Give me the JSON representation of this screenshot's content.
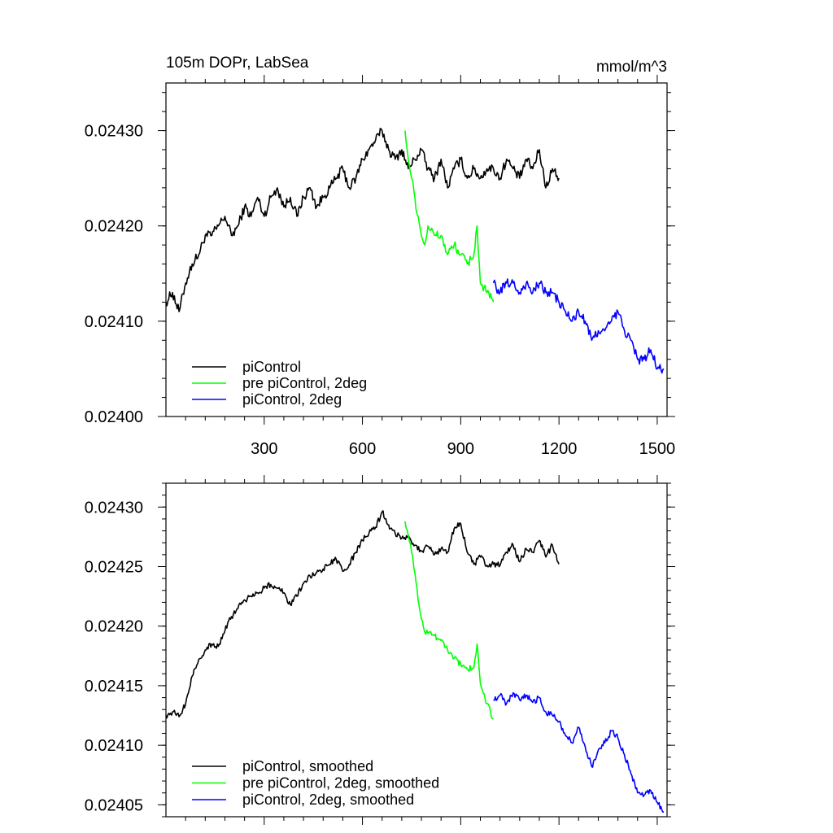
{
  "chart_data": [
    {
      "type": "line",
      "title": "105m DOPr, LabSea",
      "units": "mmol/m^3",
      "xlabel": "",
      "ylabel": "",
      "xlim": [
        0,
        1530
      ],
      "ylim": [
        0.024,
        0.02435
      ],
      "xticks": [
        300,
        600,
        900,
        1200,
        1500
      ],
      "xtick_labels": [
        "300",
        "600",
        "900",
        "1200",
        "1500"
      ],
      "yticks": [
        0.024,
        0.0241,
        0.0242,
        0.0243
      ],
      "ytick_labels": [
        "0.02400",
        "0.02410",
        "0.02420",
        "0.02430"
      ],
      "legend_position": "bottom-left",
      "series": [
        {
          "name": "piControl",
          "color": "#000000",
          "x": [
            0,
            20,
            40,
            60,
            80,
            100,
            120,
            140,
            160,
            180,
            200,
            220,
            240,
            260,
            280,
            300,
            320,
            340,
            360,
            380,
            400,
            420,
            440,
            460,
            480,
            500,
            520,
            540,
            560,
            580,
            600,
            620,
            640,
            660,
            680,
            700,
            720,
            740,
            760,
            780,
            800,
            820,
            840,
            860,
            880,
            900,
            920,
            940,
            960,
            980,
            1000,
            1020,
            1040,
            1060,
            1080,
            1100,
            1120,
            1140,
            1160,
            1180,
            1200
          ],
          "y": [
            0.02412,
            0.02413,
            0.02411,
            0.02414,
            0.02416,
            0.02417,
            0.02419,
            0.02419,
            0.0242,
            0.02421,
            0.02419,
            0.0242,
            0.02422,
            0.02421,
            0.02423,
            0.02421,
            0.02423,
            0.02424,
            0.02422,
            0.02423,
            0.02421,
            0.02423,
            0.02424,
            0.02422,
            0.02423,
            0.02424,
            0.02425,
            0.02426,
            0.02424,
            0.02425,
            0.02427,
            0.02428,
            0.02429,
            0.0243,
            0.02428,
            0.02427,
            0.02428,
            0.02426,
            0.02427,
            0.02428,
            0.02426,
            0.02425,
            0.02427,
            0.02424,
            0.02426,
            0.02427,
            0.02425,
            0.02426,
            0.02425,
            0.02426,
            0.02426,
            0.02425,
            0.02427,
            0.02426,
            0.02425,
            0.02427,
            0.02426,
            0.02428,
            0.02424,
            0.02426,
            0.02425
          ]
        },
        {
          "name": "pre piControl, 2deg",
          "color": "#00ff00",
          "x": [
            730,
            740,
            750,
            760,
            770,
            780,
            790,
            800,
            820,
            840,
            860,
            880,
            900,
            920,
            940,
            950,
            960,
            980,
            1000
          ],
          "y": [
            0.0243,
            0.02427,
            0.02425,
            0.02423,
            0.02421,
            0.02419,
            0.02418,
            0.0242,
            0.02419,
            0.02419,
            0.02417,
            0.02418,
            0.02417,
            0.02416,
            0.02417,
            0.0242,
            0.02414,
            0.02413,
            0.02412
          ]
        },
        {
          "name": "piControl, 2deg",
          "color": "#0000ff",
          "x": [
            1000,
            1020,
            1040,
            1060,
            1080,
            1100,
            1120,
            1140,
            1160,
            1180,
            1200,
            1220,
            1240,
            1260,
            1280,
            1300,
            1320,
            1340,
            1360,
            1380,
            1400,
            1420,
            1440,
            1460,
            1480,
            1500,
            1520
          ],
          "y": [
            0.02414,
            0.02413,
            0.02414,
            0.02414,
            0.02413,
            0.02414,
            0.02413,
            0.02414,
            0.02413,
            0.02413,
            0.02412,
            0.02411,
            0.0241,
            0.02411,
            0.0241,
            0.02408,
            0.02409,
            0.02409,
            0.0241,
            0.02411,
            0.02409,
            0.02408,
            0.02406,
            0.02406,
            0.02407,
            0.02405,
            0.02405
          ]
        }
      ]
    },
    {
      "type": "line",
      "title": "",
      "xlabel": "",
      "ylabel": "",
      "xlim": [
        0,
        1530
      ],
      "ylim": [
        0.02404,
        0.02432
      ],
      "xticks": [
        300,
        600,
        900,
        1200,
        1500
      ],
      "xtick_labels": [],
      "yticks": [
        0.02405,
        0.0241,
        0.02415,
        0.0242,
        0.02425,
        0.0243
      ],
      "ytick_labels": [
        "0.02405",
        "0.02410",
        "0.02415",
        "0.02420",
        "0.02425",
        "0.02430"
      ],
      "legend_position": "bottom-left",
      "series": [
        {
          "name": "piControl, smoothed",
          "color": "#000000",
          "x": [
            0,
            20,
            40,
            60,
            80,
            100,
            120,
            140,
            160,
            180,
            200,
            220,
            240,
            260,
            280,
            300,
            320,
            340,
            360,
            380,
            400,
            420,
            440,
            460,
            480,
            500,
            520,
            540,
            560,
            580,
            600,
            620,
            640,
            660,
            680,
            700,
            720,
            740,
            760,
            780,
            800,
            820,
            840,
            860,
            880,
            900,
            920,
            940,
            960,
            980,
            1000,
            1020,
            1040,
            1060,
            1080,
            1100,
            1120,
            1140,
            1160,
            1180,
            1200
          ],
          "y": [
            0.024125,
            0.024128,
            0.024124,
            0.024135,
            0.024158,
            0.024172,
            0.02418,
            0.024185,
            0.024183,
            0.024196,
            0.024208,
            0.024215,
            0.024222,
            0.024225,
            0.024228,
            0.024232,
            0.024235,
            0.024232,
            0.024228,
            0.024218,
            0.024225,
            0.024236,
            0.024242,
            0.024245,
            0.024248,
            0.024252,
            0.024256,
            0.024246,
            0.024252,
            0.024262,
            0.024272,
            0.024278,
            0.024283,
            0.024296,
            0.024285,
            0.024278,
            0.024274,
            0.024276,
            0.024268,
            0.024263,
            0.024267,
            0.02426,
            0.024265,
            0.024262,
            0.024282,
            0.024286,
            0.024262,
            0.024252,
            0.024258,
            0.024251,
            0.024252,
            0.024251,
            0.024262,
            0.024268,
            0.024254,
            0.024265,
            0.024262,
            0.024272,
            0.024258,
            0.024268,
            0.024252
          ]
        },
        {
          "name": "pre piControl, 2deg, smoothed",
          "color": "#00ff00",
          "x": [
            730,
            740,
            750,
            760,
            770,
            780,
            790,
            800,
            820,
            840,
            860,
            880,
            900,
            920,
            940,
            950,
            960,
            980,
            1000
          ],
          "y": [
            0.024288,
            0.024276,
            0.024262,
            0.024245,
            0.024222,
            0.024206,
            0.024195,
            0.024194,
            0.024192,
            0.024188,
            0.02418,
            0.024173,
            0.024168,
            0.024164,
            0.024165,
            0.024185,
            0.024152,
            0.024135,
            0.024122
          ]
        },
        {
          "name": "piControl, 2deg, smoothed",
          "color": "#0000ff",
          "x": [
            1000,
            1020,
            1040,
            1060,
            1080,
            1100,
            1120,
            1140,
            1160,
            1180,
            1200,
            1220,
            1240,
            1260,
            1280,
            1300,
            1320,
            1340,
            1360,
            1380,
            1400,
            1420,
            1440,
            1460,
            1480,
            1500,
            1520
          ],
          "y": [
            0.024138,
            0.024142,
            0.024135,
            0.024144,
            0.024138,
            0.024142,
            0.024136,
            0.02414,
            0.024128,
            0.024125,
            0.02412,
            0.024108,
            0.024102,
            0.024115,
            0.024099,
            0.024082,
            0.024096,
            0.024102,
            0.024112,
            0.024106,
            0.024092,
            0.024076,
            0.02406,
            0.024058,
            0.024062,
            0.024052,
            0.024044
          ]
        }
      ]
    }
  ]
}
